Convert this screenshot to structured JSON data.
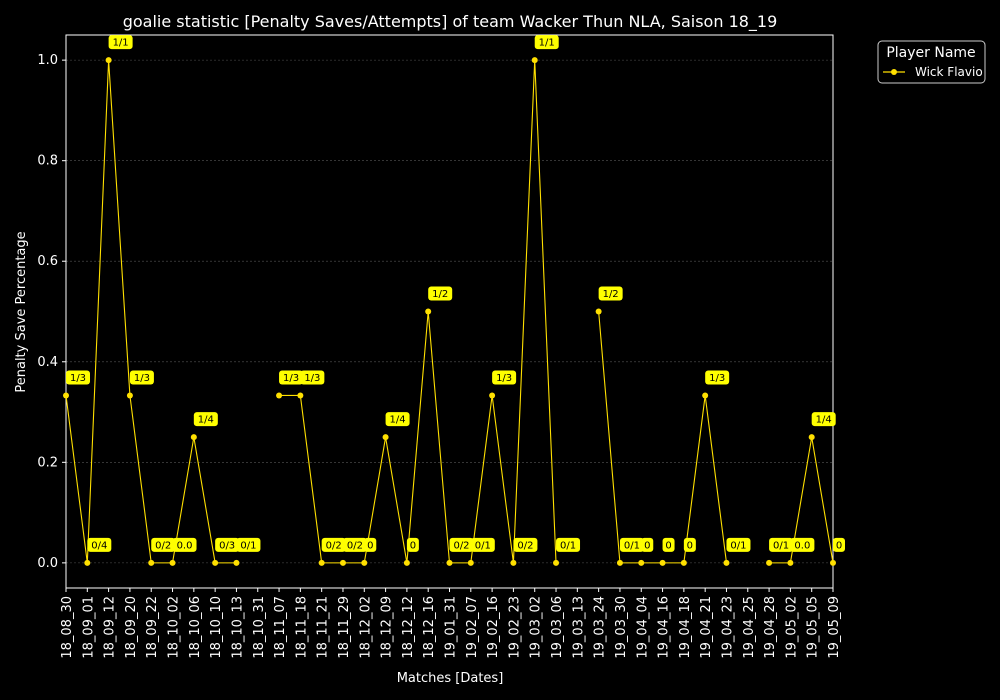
{
  "chart_data": {
    "type": "line",
    "title": "goalie statistic [Penalty Saves/Attempts] of team Wacker Thun NLA, Saison 18_19",
    "xlabel": "Matches [Dates]",
    "ylabel": "Penalty Save Percentage",
    "ylim": [
      -0.05,
      1.05
    ],
    "yticks": [
      0.0,
      0.2,
      0.4,
      0.6,
      0.8,
      1.0
    ],
    "ytick_labels": [
      "0.0",
      "0.2",
      "0.4",
      "0.6",
      "0.8",
      "1.0"
    ],
    "grid": true,
    "legend": {
      "title": "Player Name",
      "position": "outside-top-right"
    },
    "categories": [
      "18_08_30",
      "18_09_01",
      "18_09_12",
      "18_09_20",
      "18_09_22",
      "18_10_02",
      "18_10_06",
      "18_10_10",
      "18_10_13",
      "18_10_31",
      "18_11_07",
      "18_11_18",
      "18_11_21",
      "18_11_29",
      "18_12_02",
      "18_12_09",
      "18_12_12",
      "18_12_16",
      "19_01_31",
      "19_02_07",
      "19_02_16",
      "19_02_23",
      "19_03_02",
      "19_03_06",
      "19_03_13",
      "19_03_24",
      "19_03_30",
      "19_04_04",
      "19_04_16",
      "19_04_18",
      "19_04_21",
      "19_04_23",
      "19_04_25",
      "19_04_28",
      "19_05_02",
      "19_05_05",
      "19_05_09"
    ],
    "series": [
      {
        "name": "Wick Flavio",
        "color": "#ffe000",
        "values": [
          0.333,
          0,
          1,
          0.333,
          0,
          0,
          0.25,
          0,
          0,
          null,
          0.333,
          0.333,
          0,
          0,
          0,
          0.25,
          0,
          0.5,
          0,
          0,
          0.333,
          0,
          1,
          0,
          null,
          0.5,
          0,
          0,
          0,
          0,
          0.333,
          0,
          null,
          0,
          0,
          0.25,
          0
        ],
        "labels": [
          "1/3",
          "0/4",
          "1/1",
          "1/3",
          "0/2",
          "0.0",
          "1/4",
          "0/3",
          "0/1",
          null,
          "1/3",
          "1/3",
          "0/2",
          "0/2",
          "0",
          "1/4",
          "0",
          "1/2",
          "0/2",
          "0/1",
          "1/3",
          "0/2",
          "1/1",
          "0/1",
          null,
          "1/2",
          "0/1",
          "0",
          "0",
          "0",
          "1/3",
          "0/1",
          null,
          "0/1",
          "0.0",
          "1/4",
          "0"
        ]
      }
    ]
  },
  "colors": {
    "background": "#000000",
    "line": "#ffe000",
    "text": "#ffffff",
    "grid": "#555555",
    "annotation_bg": "#ffff00"
  }
}
